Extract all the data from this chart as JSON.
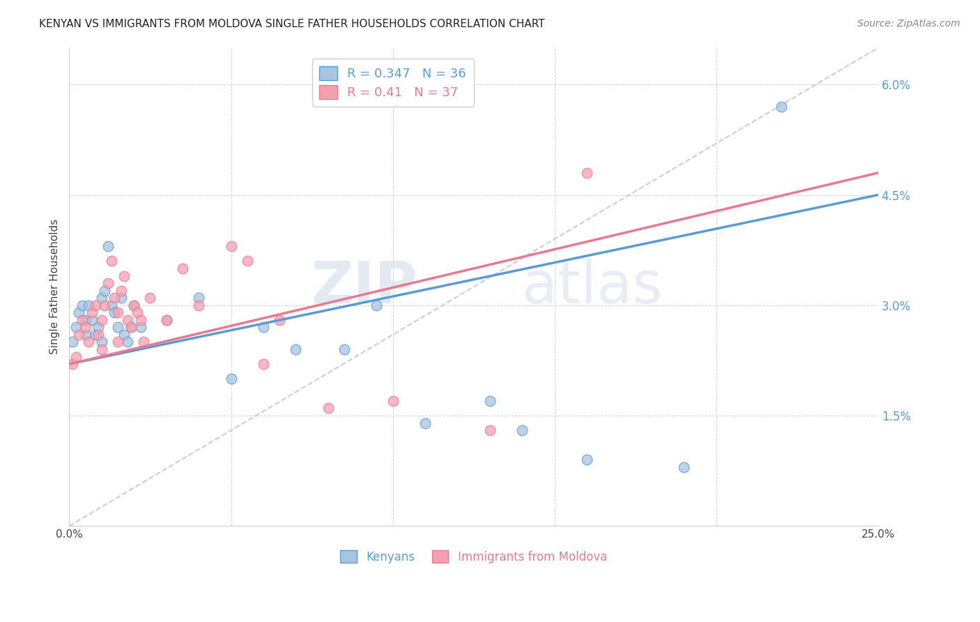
{
  "title": "KENYAN VS IMMIGRANTS FROM MOLDOVA SINGLE FATHER HOUSEHOLDS CORRELATION CHART",
  "source": "Source: ZipAtlas.com",
  "ylabel": "Single Father Households",
  "xlim": [
    0.0,
    0.25
  ],
  "ylim": [
    0.0,
    0.065
  ],
  "kenyan_color": "#a8c4e0",
  "moldova_color": "#f4a0b0",
  "trendline_kenyan_color": "#5b9bd5",
  "trendline_moldova_color": "#e87a90",
  "diagonal_color": "#c8c8c8",
  "watermark_zip": "ZIP",
  "watermark_atlas": "atlas",
  "kenyan_R": 0.347,
  "kenyan_N": 36,
  "moldova_R": 0.41,
  "moldova_N": 37,
  "trendline_kenyan_start_y": 0.022,
  "trendline_kenyan_end_y": 0.045,
  "trendline_moldova_start_y": 0.022,
  "trendline_moldova_end_y": 0.048,
  "kenyan_x": [
    0.001,
    0.002,
    0.003,
    0.004,
    0.005,
    0.005,
    0.006,
    0.007,
    0.008,
    0.009,
    0.01,
    0.01,
    0.011,
    0.012,
    0.013,
    0.014,
    0.015,
    0.016,
    0.017,
    0.018,
    0.019,
    0.02,
    0.022,
    0.03,
    0.04,
    0.05,
    0.06,
    0.07,
    0.085,
    0.095,
    0.11,
    0.13,
    0.14,
    0.16,
    0.19,
    0.22
  ],
  "kenyan_y": [
    0.025,
    0.027,
    0.029,
    0.03,
    0.026,
    0.028,
    0.03,
    0.028,
    0.026,
    0.027,
    0.025,
    0.031,
    0.032,
    0.038,
    0.03,
    0.029,
    0.027,
    0.031,
    0.026,
    0.025,
    0.027,
    0.03,
    0.027,
    0.028,
    0.031,
    0.02,
    0.027,
    0.024,
    0.024,
    0.03,
    0.014,
    0.017,
    0.013,
    0.009,
    0.008,
    0.057
  ],
  "moldova_x": [
    0.001,
    0.002,
    0.003,
    0.004,
    0.005,
    0.006,
    0.007,
    0.008,
    0.009,
    0.01,
    0.01,
    0.011,
    0.012,
    0.013,
    0.014,
    0.015,
    0.015,
    0.016,
    0.017,
    0.018,
    0.019,
    0.02,
    0.021,
    0.022,
    0.023,
    0.025,
    0.03,
    0.035,
    0.04,
    0.05,
    0.055,
    0.06,
    0.065,
    0.08,
    0.1,
    0.13,
    0.16
  ],
  "moldova_y": [
    0.022,
    0.023,
    0.026,
    0.028,
    0.027,
    0.025,
    0.029,
    0.03,
    0.026,
    0.024,
    0.028,
    0.03,
    0.033,
    0.036,
    0.031,
    0.029,
    0.025,
    0.032,
    0.034,
    0.028,
    0.027,
    0.03,
    0.029,
    0.028,
    0.025,
    0.031,
    0.028,
    0.035,
    0.03,
    0.038,
    0.036,
    0.022,
    0.028,
    0.016,
    0.017,
    0.013,
    0.048
  ]
}
